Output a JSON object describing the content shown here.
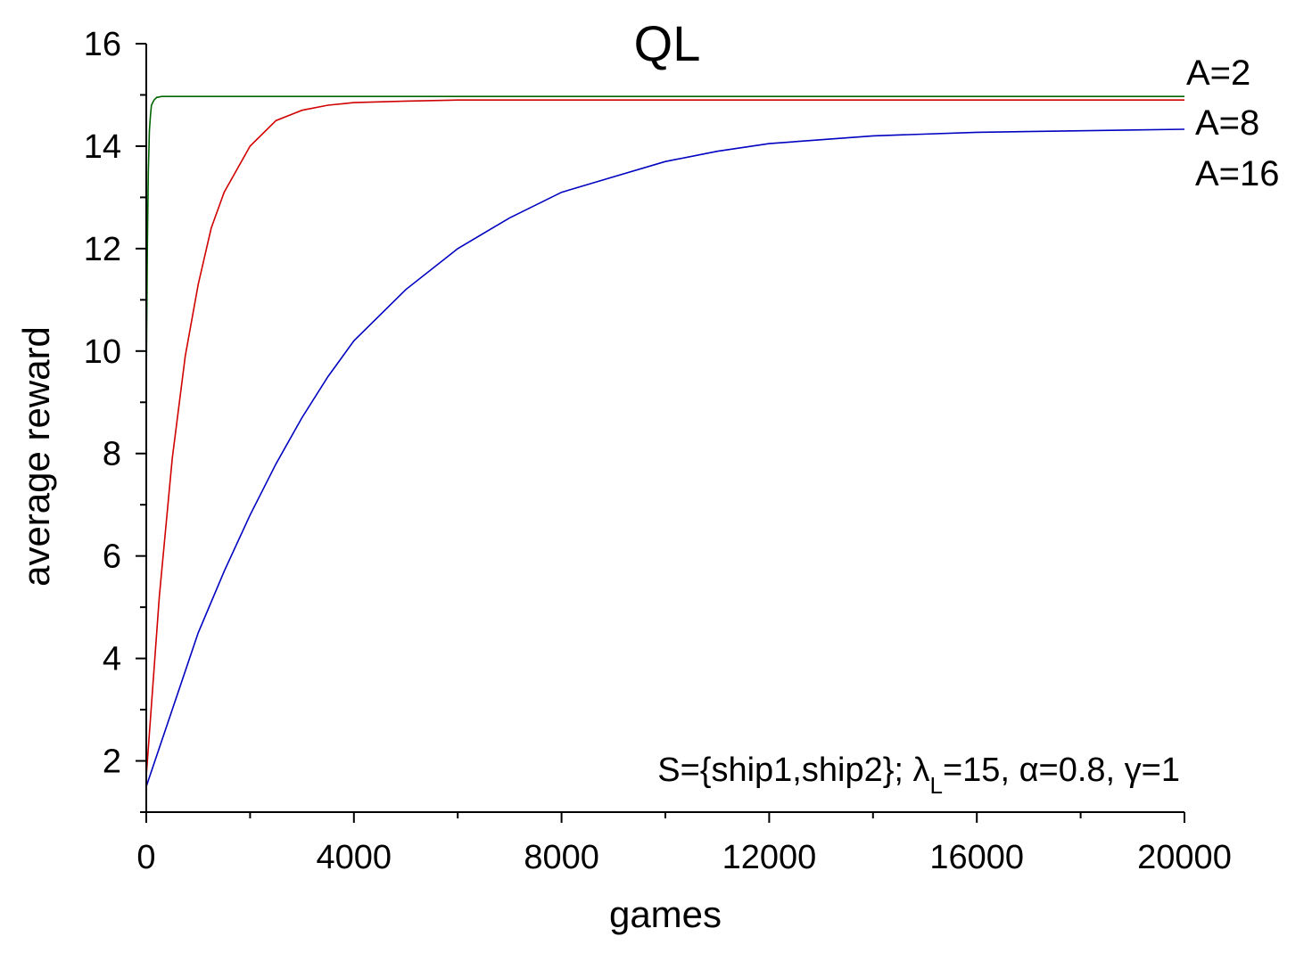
{
  "chart_data": {
    "type": "line",
    "title": "QL",
    "xlabel": "games",
    "ylabel": "average reward",
    "xlim": [
      0,
      20000
    ],
    "ylim": [
      1,
      16
    ],
    "xticks": [
      0,
      4000,
      8000,
      12000,
      16000,
      20000
    ],
    "yticks": [
      2,
      4,
      6,
      8,
      10,
      12,
      14,
      16
    ],
    "x_tick_labels": [
      "0",
      "4000",
      "8000",
      "12000",
      "16000",
      "20000"
    ],
    "y_tick_labels": [
      "2",
      "4",
      "6",
      "8",
      "10",
      "12",
      "14",
      "16"
    ],
    "grid": false,
    "series": [
      {
        "name": "A=2",
        "color": "#006400",
        "x": [
          0,
          20,
          40,
          60,
          80,
          100,
          150,
          200,
          300,
          500,
          1000,
          5000,
          10000,
          20000
        ],
        "y": [
          9.3,
          12.0,
          13.5,
          14.3,
          14.6,
          14.8,
          14.9,
          14.95,
          14.97,
          14.97,
          14.97,
          14.97,
          14.97,
          14.97
        ]
      },
      {
        "name": "A=8",
        "color": "#d00000",
        "x": [
          0,
          250,
          500,
          750,
          1000,
          1250,
          1500,
          2000,
          2500,
          3000,
          3500,
          4000,
          5000,
          6000,
          8000,
          12000,
          16000,
          20000
        ],
        "y": [
          1.7,
          5.2,
          7.9,
          9.9,
          11.3,
          12.4,
          13.1,
          14.0,
          14.5,
          14.7,
          14.8,
          14.85,
          14.88,
          14.9,
          14.9,
          14.9,
          14.9,
          14.9
        ]
      },
      {
        "name": "A=16",
        "color": "#0000c0",
        "x": [
          0,
          500,
          1000,
          1500,
          2000,
          2500,
          3000,
          3500,
          4000,
          5000,
          6000,
          7000,
          8000,
          9000,
          10000,
          11000,
          12000,
          14000,
          16000,
          18000,
          20000
        ],
        "y": [
          1.5,
          3.0,
          4.5,
          5.7,
          6.8,
          7.8,
          8.7,
          9.5,
          10.2,
          11.2,
          12.0,
          12.6,
          13.1,
          13.4,
          13.7,
          13.9,
          14.05,
          14.2,
          14.27,
          14.3,
          14.33
        ]
      }
    ],
    "annotation": {
      "prefix": "S={ship1,ship2}; ",
      "lambda": "λ",
      "lambda_sub": "L",
      "mid": "=15, ",
      "alpha": "α",
      "alpha_val": "=0.8, ",
      "gamma": "γ",
      "gamma_val": "=1"
    }
  }
}
